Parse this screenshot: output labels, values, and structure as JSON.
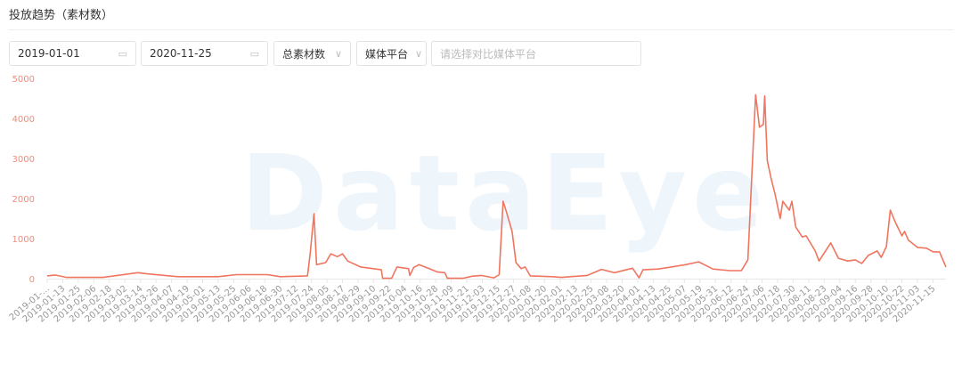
{
  "header": {
    "title": "投放趋势（素材数）"
  },
  "filters": {
    "start_date": "2019-01-01",
    "end_date": "2020-11-25",
    "metric": "总素材数",
    "platform": "媒体平台",
    "compare_placeholder": "请选择对比媒体平台"
  },
  "watermark": "DataEye",
  "colors": {
    "line": "#f07560",
    "axis_label": "#f08c7a",
    "tick_label": "#999999",
    "watermark": "#eef6fc"
  },
  "chart_data": {
    "type": "line",
    "title": "",
    "xlabel": "",
    "ylabel": "",
    "ylim": [
      0,
      5000
    ],
    "xlim": [
      "2019-01-01",
      "2020-11-25"
    ],
    "grid": false,
    "y_ticks": [
      "0",
      "1000",
      "2000",
      "3000",
      "4000",
      "5000"
    ],
    "x_ticks": [
      "2019-01-...",
      "2019-01-13",
      "2019-01-25",
      "2019-02-06",
      "2019-02-18",
      "2019-03-02",
      "2019-03-14",
      "2019-03-26",
      "2019-04-07",
      "2019-04-19",
      "2019-05-01",
      "2019-05-13",
      "2019-05-25",
      "2019-06-06",
      "2019-06-18",
      "2019-06-30",
      "2019-07-12",
      "2019-07-24",
      "2019-08-05",
      "2019-08-17",
      "2019-08-29",
      "2019-09-10",
      "2019-09-22",
      "2019-10-04",
      "2019-10-16",
      "2019-10-28",
      "2019-11-09",
      "2019-11-21",
      "2019-12-03",
      "2019-12-15",
      "2019-12-27",
      "2020-01-08",
      "2020-01-20",
      "2020-02-01",
      "2020-02-13",
      "2020-02-25",
      "2020-03-08",
      "2020-03-20",
      "2020-04-01",
      "2020-04-13",
      "2020-04-25",
      "2020-05-07",
      "2020-05-19",
      "2020-05-31",
      "2020-06-12",
      "2020-06-24",
      "2020-07-06",
      "2020-07-18",
      "2020-07-30",
      "2020-08-11",
      "2020-08-23",
      "2020-09-04",
      "2020-09-16",
      "2020-09-28",
      "2020-10-10",
      "2020-10-22",
      "2020-11-03",
      "2020-11-15"
    ],
    "series": [
      {
        "points": [
          [
            "2019-01-01",
            70
          ],
          [
            "2019-01-07",
            90
          ],
          [
            "2019-01-16",
            30
          ],
          [
            "2019-02-13",
            30
          ],
          [
            "2019-03-12",
            150
          ],
          [
            "2019-03-19",
            120
          ],
          [
            "2019-04-12",
            50
          ],
          [
            "2019-05-13",
            50
          ],
          [
            "2019-05-27",
            100
          ],
          [
            "2019-06-20",
            100
          ],
          [
            "2019-06-30",
            50
          ],
          [
            "2019-07-21",
            70
          ],
          [
            "2019-07-23",
            600
          ],
          [
            "2019-07-26",
            1620
          ],
          [
            "2019-07-28",
            350
          ],
          [
            "2019-08-04",
            400
          ],
          [
            "2019-08-08",
            620
          ],
          [
            "2019-08-13",
            550
          ],
          [
            "2019-08-17",
            620
          ],
          [
            "2019-08-21",
            440
          ],
          [
            "2019-08-31",
            290
          ],
          [
            "2019-09-10",
            250
          ],
          [
            "2019-09-16",
            220
          ],
          [
            "2019-09-17",
            10
          ],
          [
            "2019-09-24",
            10
          ],
          [
            "2019-09-28",
            290
          ],
          [
            "2019-10-07",
            250
          ],
          [
            "2019-10-08",
            80
          ],
          [
            "2019-10-11",
            280
          ],
          [
            "2019-10-15",
            350
          ],
          [
            "2019-10-23",
            250
          ],
          [
            "2019-10-29",
            170
          ],
          [
            "2019-11-04",
            150
          ],
          [
            "2019-11-06",
            10
          ],
          [
            "2019-11-18",
            10
          ],
          [
            "2019-11-25",
            60
          ],
          [
            "2019-12-02",
            80
          ],
          [
            "2019-12-12",
            20
          ],
          [
            "2019-12-16",
            100
          ],
          [
            "2019-12-19",
            1930
          ],
          [
            "2019-12-21",
            1730
          ],
          [
            "2019-12-26",
            1180
          ],
          [
            "2019-12-29",
            400
          ],
          [
            "2020-01-02",
            250
          ],
          [
            "2020-01-05",
            290
          ],
          [
            "2020-01-09",
            70
          ],
          [
            "2020-01-26",
            50
          ],
          [
            "2020-02-02",
            30
          ],
          [
            "2020-02-22",
            80
          ],
          [
            "2020-03-04",
            230
          ],
          [
            "2020-03-14",
            150
          ],
          [
            "2020-03-28",
            260
          ],
          [
            "2020-04-02",
            20
          ],
          [
            "2020-04-05",
            220
          ],
          [
            "2020-04-17",
            240
          ],
          [
            "2020-05-08",
            350
          ],
          [
            "2020-05-18",
            420
          ],
          [
            "2020-05-29",
            240
          ],
          [
            "2020-06-11",
            200
          ],
          [
            "2020-06-20",
            200
          ],
          [
            "2020-06-25",
            470
          ],
          [
            "2020-06-28",
            2500
          ],
          [
            "2020-07-01",
            4590
          ],
          [
            "2020-07-04",
            3780
          ],
          [
            "2020-07-07",
            3850
          ],
          [
            "2020-07-08",
            4560
          ],
          [
            "2020-07-10",
            2950
          ],
          [
            "2020-07-13",
            2500
          ],
          [
            "2020-07-16",
            2110
          ],
          [
            "2020-07-20",
            1500
          ],
          [
            "2020-07-22",
            1930
          ],
          [
            "2020-07-27",
            1710
          ],
          [
            "2020-07-29",
            1930
          ],
          [
            "2020-08-01",
            1290
          ],
          [
            "2020-08-06",
            1040
          ],
          [
            "2020-08-09",
            1070
          ],
          [
            "2020-08-16",
            690
          ],
          [
            "2020-08-19",
            440
          ],
          [
            "2020-08-28",
            890
          ],
          [
            "2020-09-03",
            510
          ],
          [
            "2020-09-10",
            440
          ],
          [
            "2020-09-16",
            470
          ],
          [
            "2020-09-21",
            380
          ],
          [
            "2020-09-26",
            580
          ],
          [
            "2020-10-03",
            690
          ],
          [
            "2020-10-06",
            530
          ],
          [
            "2020-10-10",
            800
          ],
          [
            "2020-10-13",
            1710
          ],
          [
            "2020-10-17",
            1400
          ],
          [
            "2020-10-22",
            1070
          ],
          [
            "2020-10-24",
            1180
          ],
          [
            "2020-10-27",
            960
          ],
          [
            "2020-11-03",
            780
          ],
          [
            "2020-11-10",
            760
          ],
          [
            "2020-11-15",
            670
          ],
          [
            "2020-11-20",
            670
          ],
          [
            "2020-11-25",
            290
          ]
        ]
      }
    ]
  }
}
